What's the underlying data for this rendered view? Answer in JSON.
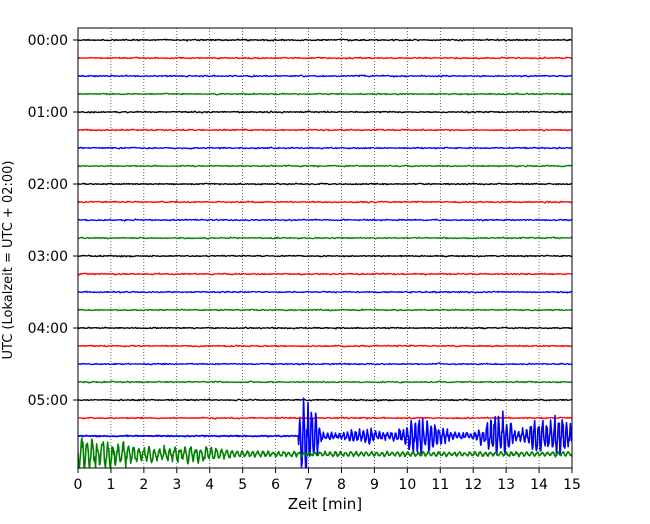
{
  "chart_data": {
    "type": "line",
    "title": "",
    "xlabel": "Zeit  [min]",
    "ylabel": "UTC (Lokalzeit = UTC + 02:00)",
    "xlim": [
      0,
      15
    ],
    "x_ticks": [
      0,
      1,
      2,
      3,
      4,
      5,
      6,
      7,
      8,
      9,
      10,
      11,
      12,
      13,
      14,
      15
    ],
    "x_tick_labels": [
      "0",
      "1",
      "2",
      "3",
      "4",
      "5",
      "6",
      "7",
      "8",
      "9",
      "10",
      "11",
      "12",
      "13",
      "14",
      "15"
    ],
    "y_tick_labels": [
      "00:00",
      "01:00",
      "02:00",
      "03:00",
      "04:00",
      "05:00"
    ],
    "trace_interval_minutes": 15,
    "trace_count": 24,
    "trace_colors": [
      "#000000",
      "#ff0000",
      "#0000ff",
      "#008000"
    ],
    "grid": "vertical dotted lines at each minute",
    "legend": "none",
    "events": [
      {
        "trace_start": "05:30",
        "color": "#0000ff",
        "start_min": 6.7,
        "end_min": 15,
        "description": "strong oscillation with bursts near 6.8-7.2, 10-11 and 13.5-14.5 min"
      },
      {
        "trace_start": "05:45",
        "color": "#008000",
        "start_min": 0,
        "end_min": 15,
        "description": "large amplitude oscillation at start, decaying after about 3 min"
      }
    ]
  }
}
